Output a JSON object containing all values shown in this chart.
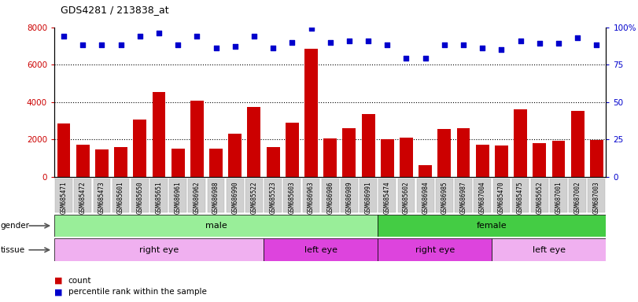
{
  "title": "GDS4281 / 213838_at",
  "samples": [
    "GSM685471",
    "GSM685472",
    "GSM685473",
    "GSM685601",
    "GSM685650",
    "GSM685651",
    "GSM686961",
    "GSM686962",
    "GSM686988",
    "GSM686990",
    "GSM685522",
    "GSM685523",
    "GSM685603",
    "GSM686963",
    "GSM686986",
    "GSM686989",
    "GSM686991",
    "GSM685474",
    "GSM685602",
    "GSM686984",
    "GSM686985",
    "GSM686987",
    "GSM687004",
    "GSM685470",
    "GSM685475",
    "GSM685652",
    "GSM687001",
    "GSM687002",
    "GSM687003"
  ],
  "counts": [
    2850,
    1700,
    1450,
    1600,
    3050,
    4550,
    1500,
    4050,
    1500,
    2300,
    3750,
    1580,
    2900,
    6850,
    2050,
    2600,
    3350,
    2000,
    2100,
    600,
    2550,
    2600,
    1700,
    1650,
    3600,
    1800,
    1900,
    3500,
    1950
  ],
  "percentiles": [
    94,
    88,
    88,
    88,
    94,
    96,
    88,
    94,
    86,
    87,
    94,
    86,
    90,
    99,
    90,
    91,
    91,
    88,
    79,
    79,
    88,
    88,
    86,
    85,
    91,
    89,
    89,
    93,
    88
  ],
  "bar_color": "#cc0000",
  "dot_color": "#0000cc",
  "ylim_left": [
    0,
    8000
  ],
  "ylim_right": [
    0,
    100
  ],
  "yticks_left": [
    0,
    2000,
    4000,
    6000,
    8000
  ],
  "yticks_right": [
    0,
    25,
    50,
    75,
    100
  ],
  "yticklabels_right": [
    "0",
    "25",
    "50",
    "75",
    "100%"
  ],
  "grid_values": [
    2000,
    4000,
    6000
  ],
  "gender_sections": [
    {
      "label": "male",
      "start": 0,
      "end": 17,
      "color": "#99ee99"
    },
    {
      "label": "female",
      "start": 17,
      "end": 29,
      "color": "#44cc44"
    }
  ],
  "tissue_sections": [
    {
      "label": "right eye",
      "start": 0,
      "end": 11,
      "color": "#f0b0f0"
    },
    {
      "label": "left eye",
      "start": 11,
      "end": 17,
      "color": "#dd44dd"
    },
    {
      "label": "right eye",
      "start": 17,
      "end": 23,
      "color": "#dd44dd"
    },
    {
      "label": "left eye",
      "start": 23,
      "end": 29,
      "color": "#f0b0f0"
    }
  ],
  "legend_count_color": "#cc0000",
  "legend_dot_color": "#0000cc",
  "tick_bg_color": "#d0d0d0"
}
